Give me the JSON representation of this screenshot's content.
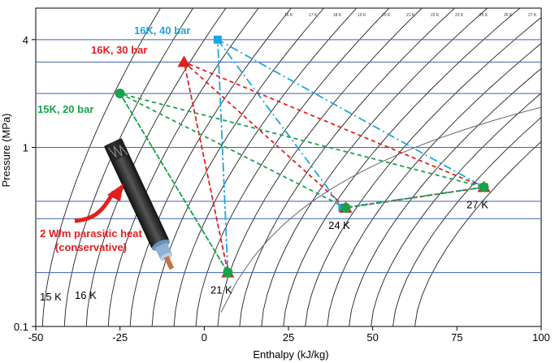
{
  "chart_data": {
    "type": "scatter",
    "xlabel": "Enthalpy (kJ/kg)",
    "ylabel": "Pressure (MPa)",
    "xlim": [
      -50,
      100
    ],
    "ylim": [
      0.1,
      6
    ],
    "yscale": "log",
    "x_ticks": [
      -50,
      -25,
      0,
      25,
      50,
      75,
      100
    ],
    "x_tick_labels": [
      "-50",
      "-25",
      "0",
      "25",
      "50",
      "75",
      "100"
    ],
    "y_ticks": [
      0.1,
      1,
      4
    ],
    "y_tick_labels": [
      "0.1",
      "1",
      "4"
    ],
    "isobars_MPa": [
      0.2,
      0.4,
      0.5,
      1.0,
      2.0,
      3.0,
      4.0
    ],
    "isotherm_labels": [
      "15 K",
      "16 K",
      "16 K",
      "17 K",
      "18 K",
      "19 K",
      "20 K",
      "21 K",
      "22 K",
      "23 K",
      "25 K",
      "26 K",
      "27 K"
    ],
    "series": [
      {
        "name": "16K, 40 bar",
        "color": "#1ea6e0",
        "marker": "square",
        "line": "dash-dot",
        "x": [
          4,
          41,
          83,
          4,
          7,
          4
        ],
        "y": [
          4.0,
          0.46,
          0.6,
          4.0,
          0.2,
          4.0
        ]
      },
      {
        "name": "16K, 30 bar",
        "color": "#e41e1e",
        "marker": "triangle",
        "line": "dashed",
        "x": [
          -6,
          42,
          83,
          -6,
          7,
          -6
        ],
        "y": [
          3.0,
          0.46,
          0.6,
          3.0,
          0.2,
          3.0
        ]
      },
      {
        "name": "15K, 20 bar",
        "color": "#16a34a",
        "marker": "circle",
        "line": "dashed",
        "x": [
          -25,
          42,
          83,
          -25,
          7,
          -25
        ],
        "y": [
          2.0,
          0.46,
          0.6,
          2.0,
          0.2,
          2.0
        ]
      }
    ],
    "point_labels": [
      {
        "text": "21 K",
        "x": 7,
        "y": 0.2
      },
      {
        "text": "24 K",
        "x": 42,
        "y": 0.46
      },
      {
        "text": "27 K",
        "x": 83,
        "y": 0.6
      }
    ],
    "annotation": {
      "line1": "2 W/m parasitic heat",
      "line2": "(conservative)",
      "color": "#e41e1e",
      "icon": "hts-cable-icon"
    },
    "grid": false
  }
}
